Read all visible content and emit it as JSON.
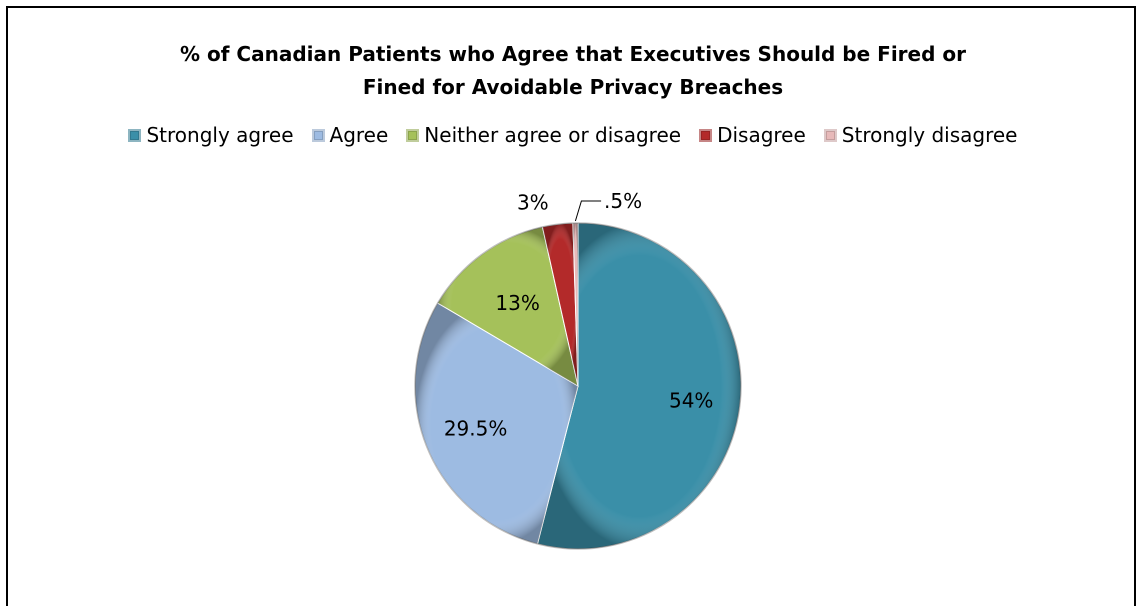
{
  "chart_data": {
    "type": "pie",
    "title": "% of Canadian Patients who Agree that Executives Should be Fired or Fined for Avoidable Privacy Breaches",
    "title_lines": [
      "% of Canadian Patients who Agree that Executives Should be Fired or",
      "Fined for Avoidable Privacy Breaches"
    ],
    "legend_position": "top",
    "categories": [
      "Strongly agree",
      "Agree",
      "Neither agree or disagree",
      "Disagree",
      "Strongly disagree"
    ],
    "values": [
      54,
      29.5,
      13,
      3,
      0.5
    ],
    "data_labels": [
      "54%",
      "29.5%",
      "13%",
      "3%",
      ".5%"
    ],
    "colors": [
      "#3A8FA8",
      "#9DBBE2",
      "#A5C15A",
      "#B32A2A",
      "#E7B9B9"
    ]
  }
}
